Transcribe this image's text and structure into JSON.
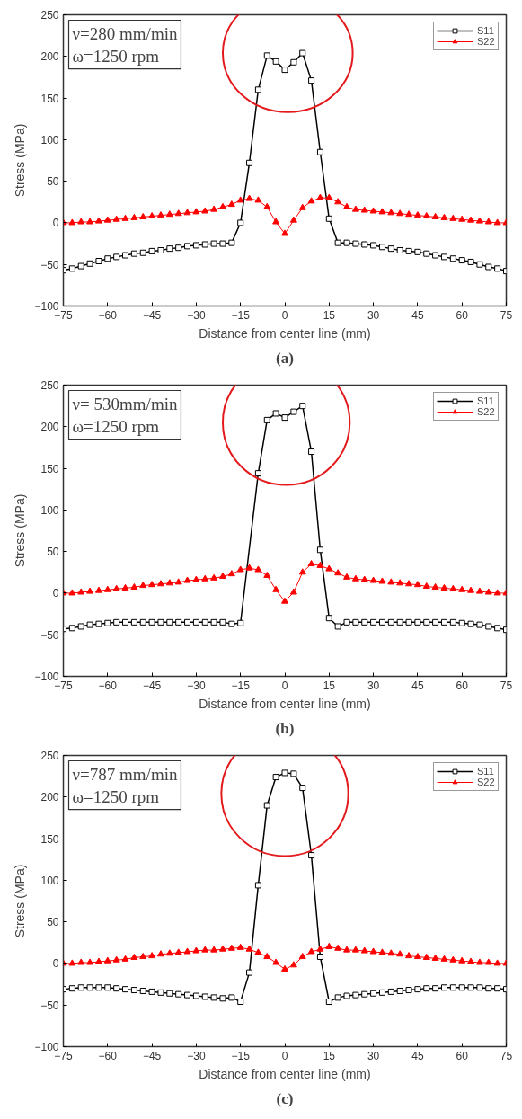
{
  "chart_data": [
    {
      "type": "line",
      "title": "(a)",
      "xlabel": "Distance from center line (mm)",
      "ylabel": "Stress (MPa)",
      "annotations": [
        "ν=280 mm/min\nω=1250 rpm"
      ],
      "xlim": [
        -75,
        75
      ],
      "ylim": [
        -100,
        250
      ],
      "xticks": [
        -75,
        -60,
        -45,
        -30,
        -15,
        0,
        15,
        30,
        45,
        60,
        75
      ],
      "yticks": [
        -100,
        -50,
        0,
        50,
        100,
        150,
        200,
        250
      ],
      "grid": false,
      "legend": "top right",
      "series": [
        {
          "name": "S11",
          "color": "#000000",
          "marker": "square",
          "x": [
            -75,
            -72,
            -69,
            -66,
            -63,
            -60,
            -57,
            -54,
            -51,
            -48,
            -45,
            -42,
            -39,
            -36,
            -33,
            -30,
            -27,
            -24,
            -21,
            -18,
            -15,
            -12,
            -9,
            -6,
            -3,
            0,
            3,
            6,
            9,
            12,
            15,
            18,
            21,
            24,
            27,
            30,
            33,
            36,
            39,
            42,
            45,
            48,
            51,
            54,
            57,
            60,
            63,
            66,
            69,
            72,
            75
          ],
          "values": [
            -57,
            -55,
            -52,
            -49,
            -46,
            -43,
            -41,
            -39,
            -37,
            -36,
            -34,
            -33,
            -31,
            -30,
            -28,
            -27,
            -26,
            -25,
            -25,
            -24,
            0,
            72,
            160,
            201,
            194,
            184,
            193,
            204,
            171,
            85,
            5,
            -24,
            -24,
            -25,
            -26,
            -27,
            -29,
            -31,
            -33,
            -34,
            -35,
            -37,
            -39,
            -41,
            -43,
            -45,
            -47,
            -50,
            -53,
            -55,
            -58
          ]
        },
        {
          "name": "S22",
          "color": "#ff0000",
          "marker": "triangle",
          "x": [
            -75,
            -72,
            -69,
            -66,
            -63,
            -60,
            -57,
            -54,
            -51,
            -48,
            -45,
            -42,
            -39,
            -36,
            -33,
            -30,
            -27,
            -24,
            -21,
            -18,
            -15,
            -12,
            -9,
            -6,
            -3,
            0,
            3,
            6,
            9,
            12,
            15,
            18,
            21,
            24,
            27,
            30,
            33,
            36,
            39,
            42,
            45,
            48,
            51,
            54,
            57,
            60,
            63,
            66,
            69,
            72,
            75
          ],
          "values": [
            0,
            0,
            1,
            1,
            2,
            3,
            4,
            5,
            6,
            7,
            8,
            9,
            10,
            11,
            12,
            13,
            14,
            16,
            19,
            22,
            27,
            29,
            27,
            19,
            1,
            -13,
            3,
            18,
            26,
            30,
            30,
            25,
            19,
            16,
            15,
            14,
            13,
            12,
            11,
            10,
            9,
            8,
            7,
            6,
            5,
            4,
            3,
            2,
            1,
            0,
            0
          ]
        }
      ]
    },
    {
      "type": "line",
      "title": "(b)",
      "xlabel": "Distance from center line (mm)",
      "ylabel": "Stress (MPa)",
      "annotations": [
        "ν= 530mm/min\nω=1250 rpm"
      ],
      "xlim": [
        -75,
        75
      ],
      "ylim": [
        -100,
        250
      ],
      "xticks": [
        -75,
        -60,
        -45,
        -30,
        -15,
        0,
        15,
        30,
        45,
        60,
        75
      ],
      "yticks": [
        -100,
        -50,
        0,
        50,
        100,
        150,
        200,
        250
      ],
      "grid": false,
      "legend": "top right",
      "series": [
        {
          "name": "S11",
          "color": "#000000",
          "marker": "square",
          "x": [
            -75,
            -72,
            -69,
            -66,
            -63,
            -60,
            -57,
            -54,
            -51,
            -48,
            -45,
            -42,
            -39,
            -36,
            -33,
            -30,
            -27,
            -24,
            -21,
            -18,
            -15,
            -9,
            -6,
            -3,
            0,
            3,
            6,
            9,
            12,
            15,
            18,
            21,
            24,
            27,
            30,
            33,
            36,
            39,
            42,
            45,
            48,
            51,
            54,
            57,
            60,
            63,
            66,
            69,
            72,
            75
          ],
          "values": [
            -43,
            -42,
            -40,
            -38,
            -37,
            -36,
            -35,
            -35,
            -35,
            -35,
            -35,
            -35,
            -35,
            -35,
            -35,
            -35,
            -35,
            -35,
            -35,
            -37,
            -36,
            144,
            208,
            216,
            211,
            218,
            225,
            170,
            52,
            -30,
            -40,
            -35,
            -35,
            -35,
            -35,
            -35,
            -35,
            -35,
            -35,
            -35,
            -35,
            -35,
            -35,
            -35,
            -36,
            -37,
            -38,
            -40,
            -42,
            -44
          ]
        },
        {
          "name": "S22",
          "color": "#ff0000",
          "marker": "triangle",
          "x": [
            -75,
            -72,
            -69,
            -66,
            -63,
            -60,
            -57,
            -54,
            -51,
            -48,
            -45,
            -42,
            -39,
            -36,
            -33,
            -30,
            -27,
            -24,
            -21,
            -18,
            -15,
            -12,
            -9,
            -6,
            -3,
            0,
            3,
            6,
            9,
            12,
            15,
            18,
            21,
            24,
            27,
            30,
            33,
            36,
            39,
            42,
            45,
            48,
            51,
            54,
            57,
            60,
            63,
            66,
            69,
            72,
            75
          ],
          "values": [
            0,
            0,
            1,
            2,
            3,
            4,
            5,
            6,
            7,
            9,
            10,
            11,
            12,
            13,
            15,
            16,
            17,
            18,
            20,
            23,
            28,
            30,
            28,
            21,
            4,
            -10,
            1,
            25,
            35,
            33,
            29,
            24,
            19,
            17,
            16,
            15,
            14,
            13,
            12,
            11,
            10,
            8,
            7,
            6,
            5,
            4,
            3,
            2,
            1,
            0,
            0
          ]
        }
      ]
    },
    {
      "type": "line",
      "title": "(c)",
      "xlabel": "Distance from center line (mm)",
      "ylabel": "Stress (MPa)",
      "annotations": [
        "ν=787 mm/min\nω=1250 rpm"
      ],
      "xlim": [
        -75,
        75
      ],
      "ylim": [
        -100,
        250
      ],
      "xticks": [
        -75,
        -60,
        -45,
        -30,
        -15,
        0,
        15,
        30,
        45,
        60,
        75
      ],
      "yticks": [
        -100,
        -50,
        0,
        50,
        100,
        150,
        200,
        250
      ],
      "grid": false,
      "legend": "top right",
      "series": [
        {
          "name": "S11",
          "color": "#000000",
          "marker": "square",
          "x": [
            -75,
            -72,
            -69,
            -66,
            -63,
            -60,
            -57,
            -54,
            -51,
            -48,
            -45,
            -42,
            -39,
            -36,
            -33,
            -30,
            -27,
            -24,
            -21,
            -18,
            -15,
            -12,
            -9,
            -6,
            -3,
            0,
            3,
            6,
            9,
            12,
            15,
            18,
            21,
            24,
            27,
            30,
            33,
            36,
            39,
            42,
            45,
            48,
            51,
            54,
            57,
            60,
            63,
            66,
            69,
            72,
            75
          ],
          "values": [
            -31,
            -30,
            -29,
            -29,
            -29,
            -29,
            -30,
            -31,
            -32,
            -33,
            -34,
            -35,
            -36,
            -37,
            -38,
            -39,
            -40,
            -41,
            -42,
            -41,
            -46,
            -11,
            94,
            190,
            224,
            229,
            228,
            211,
            130,
            8,
            -46,
            -41,
            -39,
            -38,
            -37,
            -36,
            -35,
            -34,
            -33,
            -32,
            -31,
            -30,
            -30,
            -29,
            -29,
            -29,
            -29,
            -29,
            -30,
            -30,
            -31
          ]
        },
        {
          "name": "S22",
          "color": "#ff0000",
          "marker": "triangle",
          "x": [
            -75,
            -72,
            -69,
            -66,
            -63,
            -60,
            -57,
            -54,
            -51,
            -48,
            -45,
            -42,
            -39,
            -36,
            -33,
            -30,
            -27,
            -24,
            -21,
            -18,
            -15,
            -12,
            -9,
            -6,
            -3,
            0,
            3,
            6,
            9,
            12,
            15,
            18,
            21,
            24,
            27,
            30,
            33,
            36,
            39,
            42,
            45,
            48,
            51,
            54,
            57,
            60,
            63,
            66,
            69,
            72,
            75
          ],
          "values": [
            0,
            0,
            1,
            1,
            2,
            3,
            4,
            5,
            7,
            8,
            9,
            11,
            12,
            13,
            14,
            15,
            16,
            16,
            17,
            18,
            19,
            17,
            13,
            8,
            1,
            -7,
            -2,
            8,
            14,
            17,
            20,
            18,
            16,
            16,
            15,
            14,
            13,
            12,
            11,
            9,
            8,
            7,
            6,
            5,
            4,
            3,
            2,
            1,
            1,
            0,
            0
          ]
        }
      ]
    }
  ]
}
